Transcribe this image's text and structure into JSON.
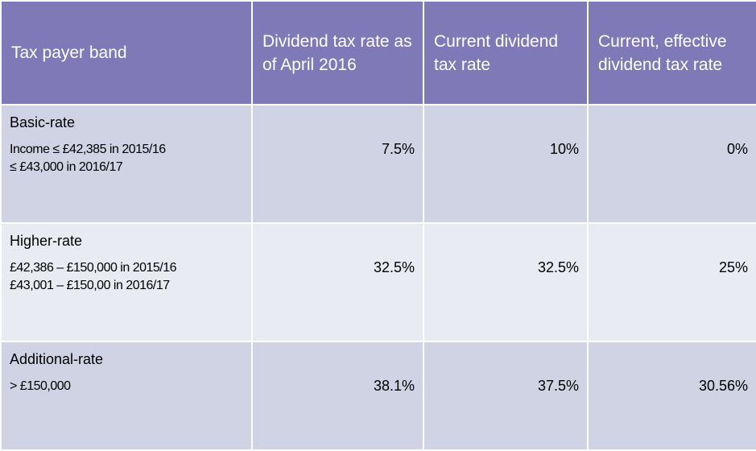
{
  "table": {
    "headers": [
      "Tax payer band",
      "Dividend tax rate as of April 2016",
      "Current dividend tax rate",
      "Current, effective dividend tax rate"
    ],
    "rows": [
      {
        "band": "Basic-rate",
        "detail": "Income ≤ £42,385 in 2015/16\n≤ £43,000 in 2016/17",
        "rate_april_2016": "7.5%",
        "current_rate": "10%",
        "effective_rate": "0%"
      },
      {
        "band": "Higher-rate",
        "detail": "£42,386 – £150,000 in 2015/16\n£43,001 – £150,00 in 2016/17",
        "rate_april_2016": "32.5%",
        "current_rate": "32.5%",
        "effective_rate": "25%"
      },
      {
        "band": "Additional-rate",
        "detail": "> £150,000",
        "rate_april_2016": "38.1%",
        "current_rate": "37.5%",
        "effective_rate": "30.56%"
      }
    ]
  },
  "colors": {
    "header_bg": "#8079b8",
    "row_dark": "#cfd3e4",
    "row_light": "#e9ebf3"
  }
}
